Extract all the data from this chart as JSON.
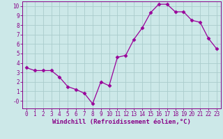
{
  "x": [
    0,
    1,
    2,
    3,
    4,
    5,
    6,
    7,
    8,
    9,
    10,
    11,
    12,
    13,
    14,
    15,
    16,
    17,
    18,
    19,
    20,
    21,
    22,
    23
  ],
  "y": [
    3.5,
    3.2,
    3.2,
    3.2,
    2.5,
    1.5,
    1.2,
    0.8,
    -0.3,
    2.0,
    1.6,
    4.6,
    4.8,
    6.5,
    7.7,
    9.3,
    10.2,
    10.2,
    9.4,
    9.4,
    8.5,
    8.3,
    6.6,
    5.5
  ],
  "line_color": "#990099",
  "marker": "D",
  "marker_size": 2.5,
  "background_color": "#cce8e8",
  "grid_color": "#aacccc",
  "xlabel": "Windchill (Refroidissement éolien,°C)",
  "xlabel_color": "#880088",
  "xlabel_fontsize": 6.5,
  "tick_color": "#880088",
  "tick_fontsize": 5.5,
  "ylim": [
    -0.8,
    10.5
  ],
  "xlim": [
    -0.5,
    23.5
  ],
  "yticks": [
    0,
    1,
    2,
    3,
    4,
    5,
    6,
    7,
    8,
    9,
    10
  ],
  "xticks": [
    0,
    1,
    2,
    3,
    4,
    5,
    6,
    7,
    8,
    9,
    10,
    11,
    12,
    13,
    14,
    15,
    16,
    17,
    18,
    19,
    20,
    21,
    22,
    23
  ],
  "ytick_labels": [
    "-0",
    "1",
    "2",
    "3",
    "4",
    "5",
    "6",
    "7",
    "8",
    "9",
    "10"
  ]
}
